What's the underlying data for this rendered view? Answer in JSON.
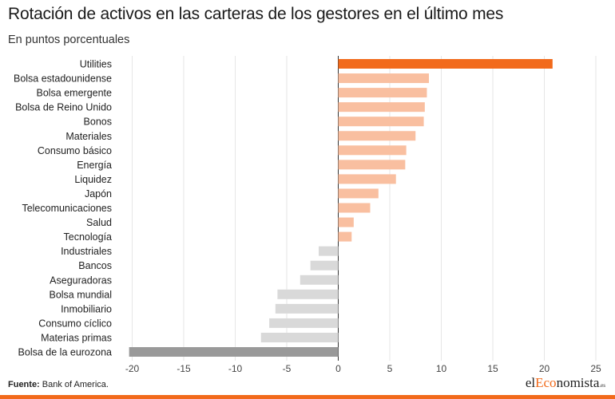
{
  "header": {
    "title": "Rotación de activos en las carteras de los gestores en el último mes",
    "subtitle": "En puntos porcentuales"
  },
  "footer": {
    "source_label": "Fuente:",
    "source_text": "Bank of America.",
    "logo_prefix": "el",
    "logo_accent": "Eco",
    "logo_suffix": "nomista",
    "logo_tld": ".es"
  },
  "colors": {
    "highlight": "#f26a1b",
    "positive": "#f9bfa0",
    "negative": "#d9d9d9",
    "lowest": "#999999",
    "grid": "#e6e6e6",
    "axis": "#333333"
  },
  "chart_data": {
    "type": "bar",
    "orientation": "horizontal",
    "categories": [
      "Utilities",
      "Bolsa estadounidense",
      "Bolsa emergente ",
      "Bolsa de Reino Unido",
      "Bonos",
      "Materiales",
      "Consumo básico",
      "Energía",
      "Liquidez",
      "Japón",
      "Telecomunicaciones",
      "Salud",
      "Tecnología ",
      "Industriales",
      "Bancos",
      "Aseguradoras",
      "Bolsa mundial",
      "Inmobiliario",
      "Consumo cíclico",
      "Materias primas",
      "Bolsa de la eurozona"
    ],
    "values": [
      20.8,
      8.8,
      8.6,
      8.4,
      8.3,
      7.5,
      6.6,
      6.5,
      5.6,
      3.9,
      3.1,
      1.5,
      1.3,
      -1.9,
      -2.7,
      -3.7,
      -5.9,
      -6.1,
      -6.7,
      -7.5,
      -20.3
    ],
    "xlim": [
      -20,
      25
    ],
    "xticks": [
      -20,
      -15,
      -10,
      -5,
      0,
      5,
      10,
      15,
      20,
      25
    ],
    "grid": true
  }
}
